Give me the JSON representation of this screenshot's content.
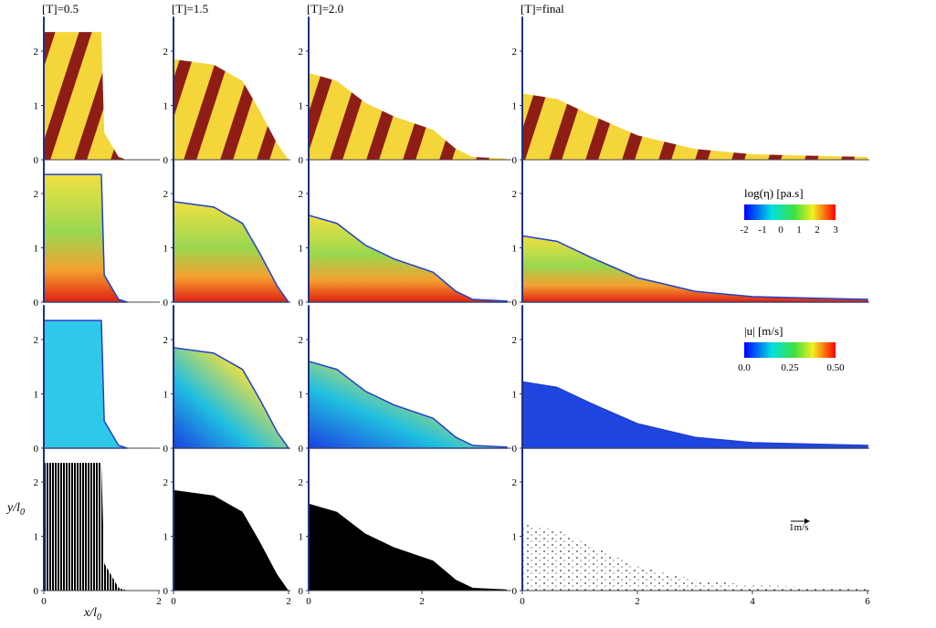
{
  "columns": [
    {
      "title": "[T]=0.5",
      "x_ticks": [
        "0",
        "2"
      ]
    },
    {
      "title": "[T]=1.5",
      "x_ticks": [
        "0",
        "2"
      ]
    },
    {
      "title": "[T]=2.0",
      "x_ticks": [
        "0",
        "2"
      ]
    },
    {
      "title": "[T]=final",
      "x_ticks": [
        "0",
        "2",
        "4",
        "6"
      ]
    }
  ],
  "y_ticks": [
    "0",
    "1",
    "2"
  ],
  "axis_labels": {
    "y": {
      "text": "y/l",
      "sub": "0"
    },
    "x": {
      "text": "x/l",
      "sub": "0"
    }
  },
  "colorbars": [
    {
      "title": "log(η) [pa.s]",
      "ticks": [
        "-2",
        "-1",
        "0",
        "1",
        "2",
        "3"
      ]
    },
    {
      "title": "|u| [m/s]",
      "ticks": [
        "0.0",
        "0.25",
        "0.50"
      ]
    }
  ],
  "arrow_label": "1m/s"
}
